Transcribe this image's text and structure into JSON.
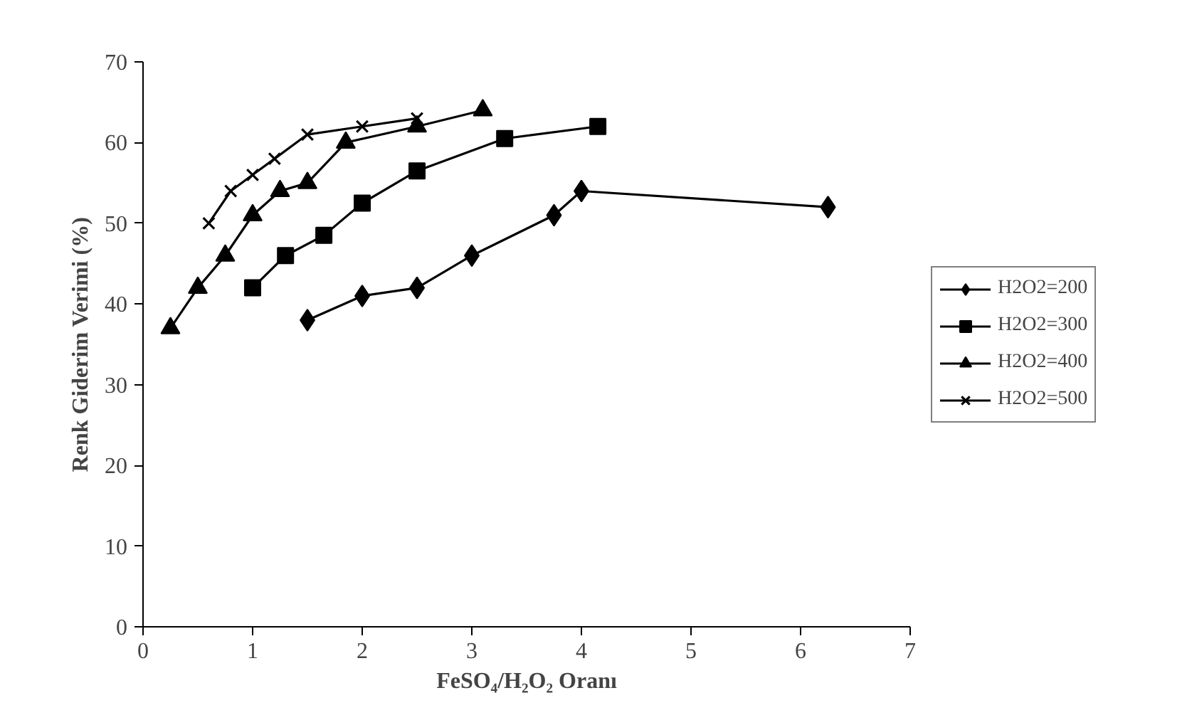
{
  "chart_data": {
    "type": "line",
    "xlabel": "FeSO₄/H₂O₂ Oranı",
    "ylabel": "Renk Giderim Verimi (%)",
    "xlim": [
      0,
      7
    ],
    "xticks": [
      0,
      1,
      2,
      3,
      4,
      5,
      6,
      7
    ],
    "ylim": [
      0,
      70
    ],
    "yticks": [
      0,
      10,
      20,
      30,
      40,
      50,
      60,
      70
    ],
    "grid": false,
    "legend": "right",
    "line_style": "solid",
    "series": [
      {
        "name": "H2O2=200",
        "color": "#000000",
        "marker": "diamond",
        "x": [
          1.5,
          2.0,
          2.5,
          3.0,
          3.75,
          4.0,
          6.25
        ],
        "values": [
          38,
          41,
          42,
          46,
          51,
          54,
          52
        ]
      },
      {
        "name": "H2O2=300",
        "color": "#000000",
        "marker": "square",
        "x": [
          1.0,
          1.3,
          1.65,
          2.0,
          2.5,
          3.3,
          4.15
        ],
        "values": [
          42,
          46,
          48.5,
          52.5,
          56.5,
          60.5,
          62
        ]
      },
      {
        "name": "H2O2=400",
        "color": "#000000",
        "marker": "triangle",
        "x": [
          0.25,
          0.5,
          0.75,
          1.0,
          1.25,
          1.5,
          1.85,
          2.5,
          3.1
        ],
        "values": [
          37,
          42,
          46,
          51,
          54,
          55,
          60,
          62,
          64
        ]
      },
      {
        "name": "H2O2=500",
        "color": "#000000",
        "marker": "cross",
        "x": [
          0.6,
          0.8,
          1.0,
          1.2,
          1.5,
          2.0,
          2.5
        ],
        "values": [
          50,
          54,
          56,
          58,
          61,
          62,
          63
        ]
      }
    ]
  }
}
